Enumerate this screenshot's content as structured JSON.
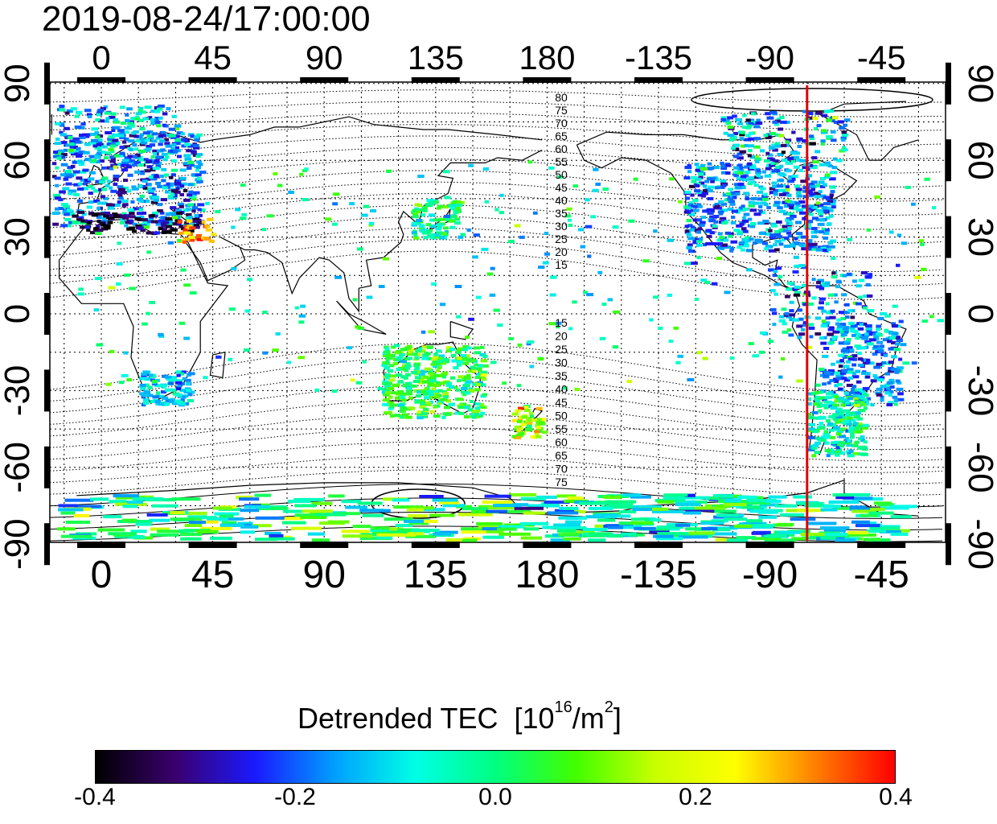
{
  "timestamp": "2019-08-24/17:00:00",
  "map": {
    "top_lon_ticks": [
      "0",
      "45",
      "90",
      "135",
      "180",
      "-135",
      "-90",
      "-45"
    ],
    "bottom_lon_ticks": [
      "0",
      "45",
      "90",
      "135",
      "180",
      "-135",
      "-90",
      "-45"
    ],
    "left_lat_ticks": [
      "90",
      "60",
      "30",
      "0",
      "-30",
      "-60",
      "-90"
    ],
    "right_lat_ticks": [
      "90",
      "60",
      "30",
      "0",
      "-30",
      "-60",
      "-90"
    ],
    "contour_labels_north": [
      "80",
      "75",
      "70",
      "65",
      "60",
      "55",
      "50",
      "45",
      "40",
      "35",
      "30",
      "25",
      "20",
      "15"
    ],
    "contour_labels_south": [
      "15",
      "20",
      "25",
      "30",
      "35",
      "40",
      "45",
      "50",
      "55",
      "60",
      "65",
      "70",
      "75"
    ],
    "terminator_longitude": -75,
    "terminator_color": "#e00000"
  },
  "colorbar": {
    "title_main": "Detrended TEC",
    "title_unit_prefix": "[10",
    "title_unit_sup": "16",
    "title_unit_mid": "/m",
    "title_unit_sup2": "2",
    "title_unit_suffix": "]",
    "tick_labels": [
      "-0.4",
      "-0.2",
      "0.0",
      "0.2",
      "0.4"
    ],
    "range": [
      -0.4,
      0.4
    ],
    "colors": [
      "#000000",
      "#3a006e",
      "#1a1aff",
      "#00a0ff",
      "#00ffe6",
      "#00ff80",
      "#40ff00",
      "#c8ff00",
      "#ffff00",
      "#ff8000",
      "#ff0000"
    ]
  }
}
